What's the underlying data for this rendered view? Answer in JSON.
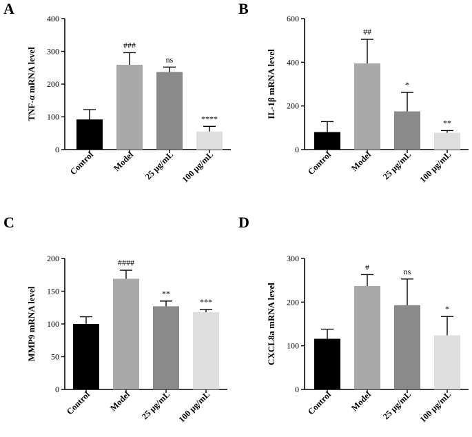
{
  "chart_data": [
    {
      "type": "bar",
      "panel": "A",
      "ylabel": "TNF-α mRNA level",
      "categories": [
        "Control",
        "Model",
        "25 μg/mL",
        "100 μg/mL"
      ],
      "values": [
        92,
        259,
        237,
        55
      ],
      "errors": [
        30,
        37,
        15,
        16
      ],
      "annotations": [
        "",
        "###",
        "ns",
        "****"
      ],
      "colors": [
        "#000000",
        "#a9a9a9",
        "#8a8a8a",
        "#dedede"
      ],
      "ylim": [
        0,
        400
      ],
      "yticks": [
        0,
        100,
        200,
        300,
        400
      ]
    },
    {
      "type": "bar",
      "panel": "B",
      "ylabel": "IL-1β mRNA level",
      "categories": [
        "Control",
        "Model",
        "25 μg/mL",
        "100 μg/mL"
      ],
      "values": [
        80,
        395,
        175,
        77
      ],
      "errors": [
        48,
        110,
        87,
        10
      ],
      "annotations": [
        "",
        "##",
        "*",
        "**"
      ],
      "colors": [
        "#000000",
        "#a9a9a9",
        "#8a8a8a",
        "#dedede"
      ],
      "ylim": [
        0,
        600
      ],
      "yticks": [
        0,
        200,
        400,
        600
      ]
    },
    {
      "type": "bar",
      "panel": "C",
      "ylabel": "MMP9 mRNA level",
      "categories": [
        "Control",
        "Model",
        "25 μg/mL",
        "100 μg/mL"
      ],
      "values": [
        100,
        169,
        127,
        118
      ],
      "errors": [
        11,
        13,
        8,
        4
      ],
      "annotations": [
        "",
        "####",
        "**",
        "***"
      ],
      "colors": [
        "#000000",
        "#a9a9a9",
        "#8a8a8a",
        "#dedede"
      ],
      "ylim": [
        0,
        200
      ],
      "yticks": [
        0,
        50,
        100,
        150,
        200
      ]
    },
    {
      "type": "bar",
      "panel": "D",
      "ylabel": "CXCL8a mRNA level",
      "categories": [
        "Control",
        "Model",
        "25 μg/mL",
        "100 μg/mL"
      ],
      "values": [
        116,
        237,
        193,
        124
      ],
      "errors": [
        22,
        26,
        60,
        43
      ],
      "annotations": [
        "",
        "#",
        "ns",
        "*"
      ],
      "colors": [
        "#000000",
        "#a9a9a9",
        "#8a8a8a",
        "#dedede"
      ],
      "ylim": [
        0,
        300
      ],
      "yticks": [
        0,
        100,
        200,
        300
      ]
    }
  ]
}
